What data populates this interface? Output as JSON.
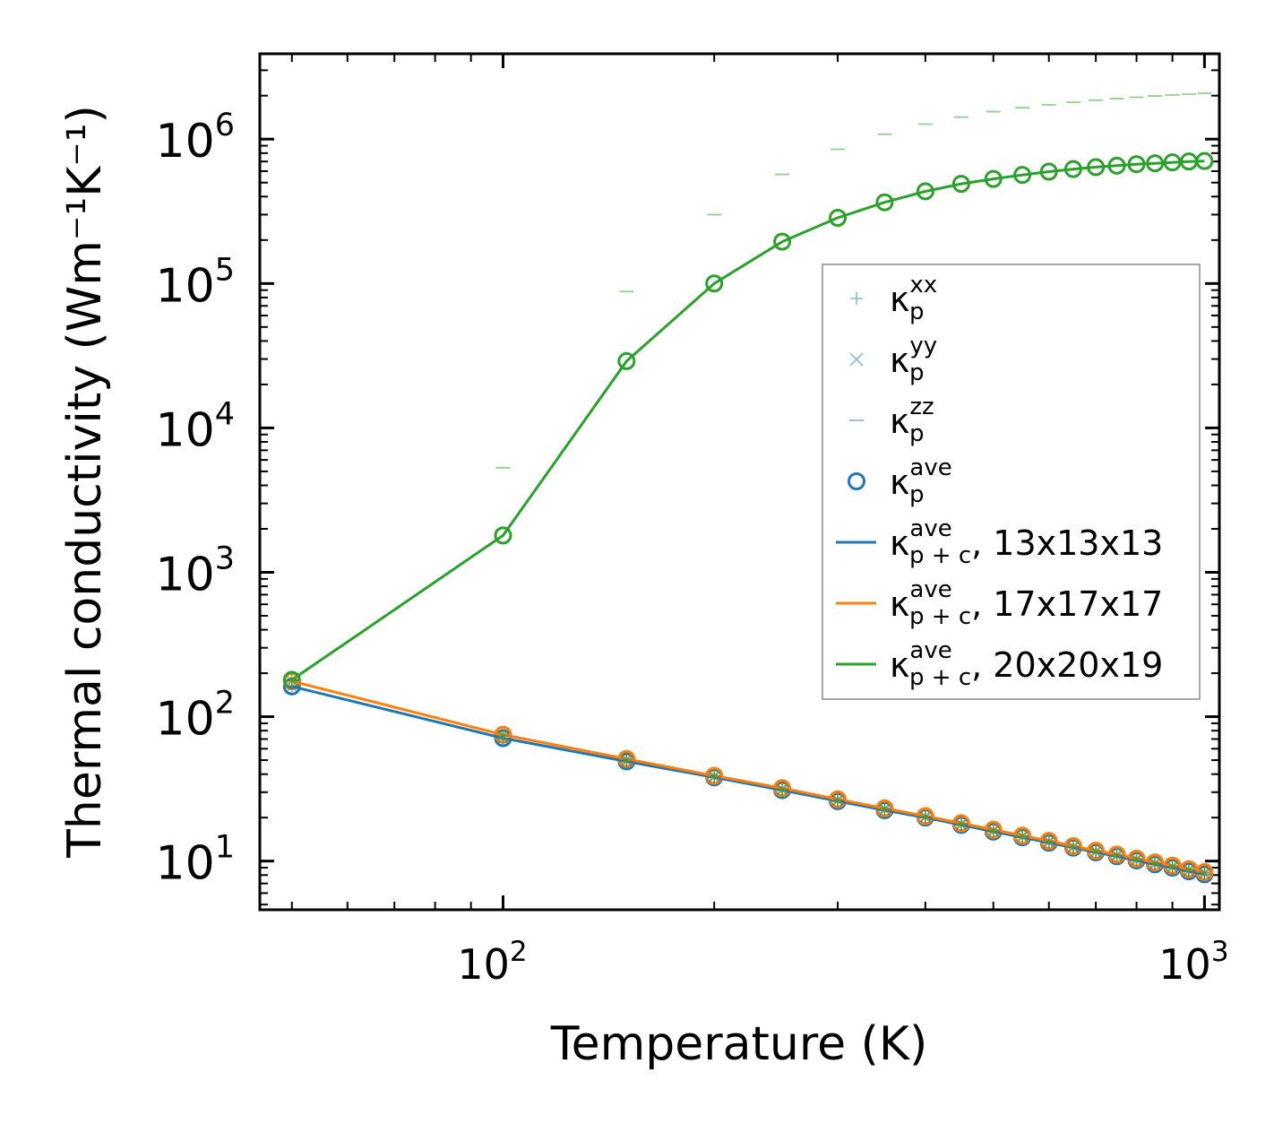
{
  "chart_data": {
    "type": "line",
    "xscale": "log",
    "yscale": "log",
    "xlabel": "Temperature (K)",
    "ylabel": "Thermal conductivity (Wm⁻¹K⁻¹)",
    "xlim": [
      45,
      1050
    ],
    "ylim": [
      4.6,
      3900000
    ],
    "xticks": [
      {
        "value": 100,
        "base": "10",
        "exp": "2"
      },
      {
        "value": 1000,
        "base": "10",
        "exp": "3"
      }
    ],
    "yticks": [
      {
        "value": 10,
        "base": "10",
        "exp": "1"
      },
      {
        "value": 100,
        "base": "10",
        "exp": "2"
      },
      {
        "value": 1000,
        "base": "10",
        "exp": "3"
      },
      {
        "value": 10000,
        "base": "10",
        "exp": "4"
      },
      {
        "value": 100000,
        "base": "10",
        "exp": "5"
      },
      {
        "value": 1000000,
        "base": "10",
        "exp": "6"
      }
    ],
    "x": [
      50,
      100,
      150,
      200,
      250,
      300,
      350,
      400,
      450,
      500,
      550,
      600,
      650,
      700,
      750,
      800,
      850,
      900,
      950,
      1000
    ],
    "series": [
      {
        "name": "13x13x13",
        "color": "#1f77b4",
        "kxx": [
          162,
          71,
          49,
          38,
          31,
          26,
          22.5,
          20,
          17.8,
          16,
          14.6,
          13.4,
          12.4,
          11.5,
          10.8,
          10.1,
          9.5,
          9.0,
          8.5,
          8.1
        ],
        "kyy": [
          162,
          71,
          49,
          38,
          31,
          26,
          22.5,
          20,
          17.8,
          16,
          14.6,
          13.4,
          12.4,
          11.5,
          10.8,
          10.1,
          9.5,
          9.0,
          8.5,
          8.1
        ],
        "kzz": [
          162,
          71,
          49,
          38,
          31,
          26,
          22.5,
          20,
          17.8,
          16,
          14.6,
          13.4,
          12.4,
          11.5,
          10.8,
          10.1,
          9.5,
          9.0,
          8.5,
          8.1
        ],
        "kave": [
          162,
          71,
          49,
          38,
          31,
          26,
          22.5,
          20,
          17.8,
          16,
          14.6,
          13.4,
          12.4,
          11.5,
          10.8,
          10.1,
          9.5,
          9.0,
          8.5,
          8.1
        ],
        "kpc": [
          162,
          71,
          49,
          38,
          31,
          26,
          22.5,
          20,
          17.8,
          16,
          14.6,
          13.4,
          12.4,
          11.5,
          10.8,
          10.1,
          9.5,
          9.0,
          8.5,
          8.1
        ]
      },
      {
        "name": "17x17x17",
        "color": "#ff7f0e",
        "kxx": [
          176,
          75,
          51,
          39,
          32,
          26.8,
          23.2,
          20.5,
          18.3,
          16.5,
          15.0,
          13.8,
          12.7,
          11.8,
          11.1,
          10.4,
          9.8,
          9.3,
          8.8,
          8.4
        ],
        "kyy": [
          176,
          75,
          51,
          39,
          32,
          26.8,
          23.2,
          20.5,
          18.3,
          16.5,
          15.0,
          13.8,
          12.7,
          11.8,
          11.1,
          10.4,
          9.8,
          9.3,
          8.8,
          8.4
        ],
        "kzz": [
          176,
          75,
          51,
          39,
          32,
          26.8,
          23.2,
          20.5,
          18.3,
          16.5,
          15.0,
          13.8,
          12.7,
          11.8,
          11.1,
          10.4,
          9.8,
          9.3,
          8.8,
          8.4
        ],
        "kave": [
          176,
          75,
          51,
          39,
          32,
          26.8,
          23.2,
          20.5,
          18.3,
          16.5,
          15.0,
          13.8,
          12.7,
          11.8,
          11.1,
          10.4,
          9.8,
          9.3,
          8.8,
          8.4
        ],
        "kpc": [
          176,
          75,
          51,
          39,
          32,
          26.8,
          23.2,
          20.5,
          18.3,
          16.5,
          15.0,
          13.8,
          12.7,
          11.8,
          11.1,
          10.4,
          9.8,
          9.3,
          8.8,
          8.4
        ]
      },
      {
        "name": "20x20x19",
        "color": "#2ca02c",
        "kxx": [
          178,
          74,
          50.5,
          39,
          31.5,
          26.5,
          23,
          20.3,
          18.1,
          16.3,
          14.9,
          13.7,
          12.6,
          11.7,
          11.0,
          10.3,
          9.7,
          9.2,
          8.7,
          8.3
        ],
        "kyy": [
          178,
          74,
          50.5,
          39,
          31.5,
          26.5,
          23,
          20.3,
          18.1,
          16.3,
          14.9,
          13.7,
          12.6,
          11.7,
          11.0,
          10.3,
          9.7,
          9.2,
          8.7,
          8.3
        ],
        "kzz": [
          178,
          5300,
          88000,
          300000,
          570000,
          850000,
          1080000,
          1270000,
          1420000,
          1550000,
          1650000,
          1730000,
          1800000,
          1860000,
          1910000,
          1950000,
          1990000,
          2020000,
          2050000,
          2080000
        ],
        "kave": [
          180,
          1800,
          29000,
          100000,
          195000,
          285000,
          365000,
          435000,
          490000,
          530000,
          565000,
          595000,
          620000,
          640000,
          655000,
          670000,
          680000,
          690000,
          700000,
          705000
        ],
        "kpc": [
          180,
          1800,
          29000,
          100000,
          195000,
          285000,
          365000,
          435000,
          490000,
          530000,
          565000,
          595000,
          620000,
          640000,
          655000,
          670000,
          680000,
          690000,
          700000,
          705000
        ]
      }
    ],
    "legend": {
      "placement": "center-right",
      "entries": [
        {
          "symbol": "kappa",
          "sub": "p",
          "sup": "xx",
          "suffix": "",
          "marker": "plus"
        },
        {
          "symbol": "kappa",
          "sub": "p",
          "sup": "yy",
          "suffix": "",
          "marker": "x"
        },
        {
          "symbol": "kappa",
          "sub": "p",
          "sup": "zz",
          "suffix": "",
          "marker": "dash"
        },
        {
          "symbol": "kappa",
          "sub": "p",
          "sup": "ave",
          "suffix": "",
          "marker": "circle"
        },
        {
          "symbol": "kappa",
          "sub": "p + c",
          "sup": "ave",
          "suffix": ", 13x13x13",
          "marker": "line",
          "color": "#1f77b4"
        },
        {
          "symbol": "kappa",
          "sub": "p + c",
          "sup": "ave",
          "suffix": ", 17x17x17",
          "marker": "line",
          "color": "#ff7f0e"
        },
        {
          "symbol": "kappa",
          "sub": "p + c",
          "sup": "ave",
          "suffix": ", 20x20x19",
          "marker": "line",
          "color": "#2ca02c"
        }
      ]
    }
  }
}
